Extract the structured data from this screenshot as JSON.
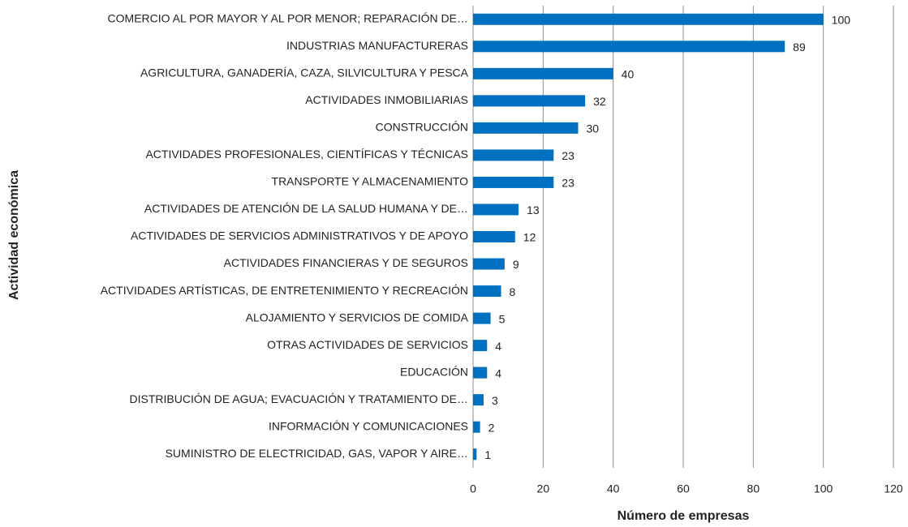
{
  "chart_data": {
    "type": "bar",
    "orientation": "horizontal",
    "x_label": "Número de empresas",
    "y_label": "Actividad económica",
    "categories": [
      "COMERCIO AL POR MAYOR Y AL POR MENOR; REPARACIÓN DE…",
      "INDUSTRIAS MANUFACTURERAS",
      "AGRICULTURA, GANADERÍA, CAZA, SILVICULTURA Y PESCA",
      "ACTIVIDADES INMOBILIARIAS",
      "CONSTRUCCIÓN",
      "ACTIVIDADES PROFESIONALES, CIENTÍFICAS Y TÉCNICAS",
      "TRANSPORTE Y ALMACENAMIENTO",
      "ACTIVIDADES DE ATENCIÓN DE LA SALUD HUMANA Y DE…",
      "ACTIVIDADES DE SERVICIOS ADMINISTRATIVOS Y DE APOYO",
      "ACTIVIDADES FINANCIERAS Y DE SEGUROS",
      "ACTIVIDADES ARTÍSTICAS, DE ENTRETENIMIENTO Y RECREACIÓN",
      "ALOJAMIENTO Y SERVICIOS DE COMIDA",
      "OTRAS ACTIVIDADES DE SERVICIOS",
      "EDUCACIÓN",
      "DISTRIBUCIÓN DE AGUA; EVACUACIÓN Y TRATAMIENTO DE…",
      "INFORMACIÓN Y COMUNICACIONES",
      "SUMINISTRO DE ELECTRICIDAD, GAS, VAPOR Y AIRE…"
    ],
    "values": [
      100,
      89,
      40,
      32,
      30,
      23,
      23,
      13,
      12,
      9,
      8,
      5,
      4,
      4,
      3,
      2,
      1
    ],
    "color": "#0070c0",
    "xlim": [
      0,
      120
    ],
    "xticks": [
      0,
      20,
      40,
      60,
      80,
      100,
      120
    ],
    "grid": true
  }
}
